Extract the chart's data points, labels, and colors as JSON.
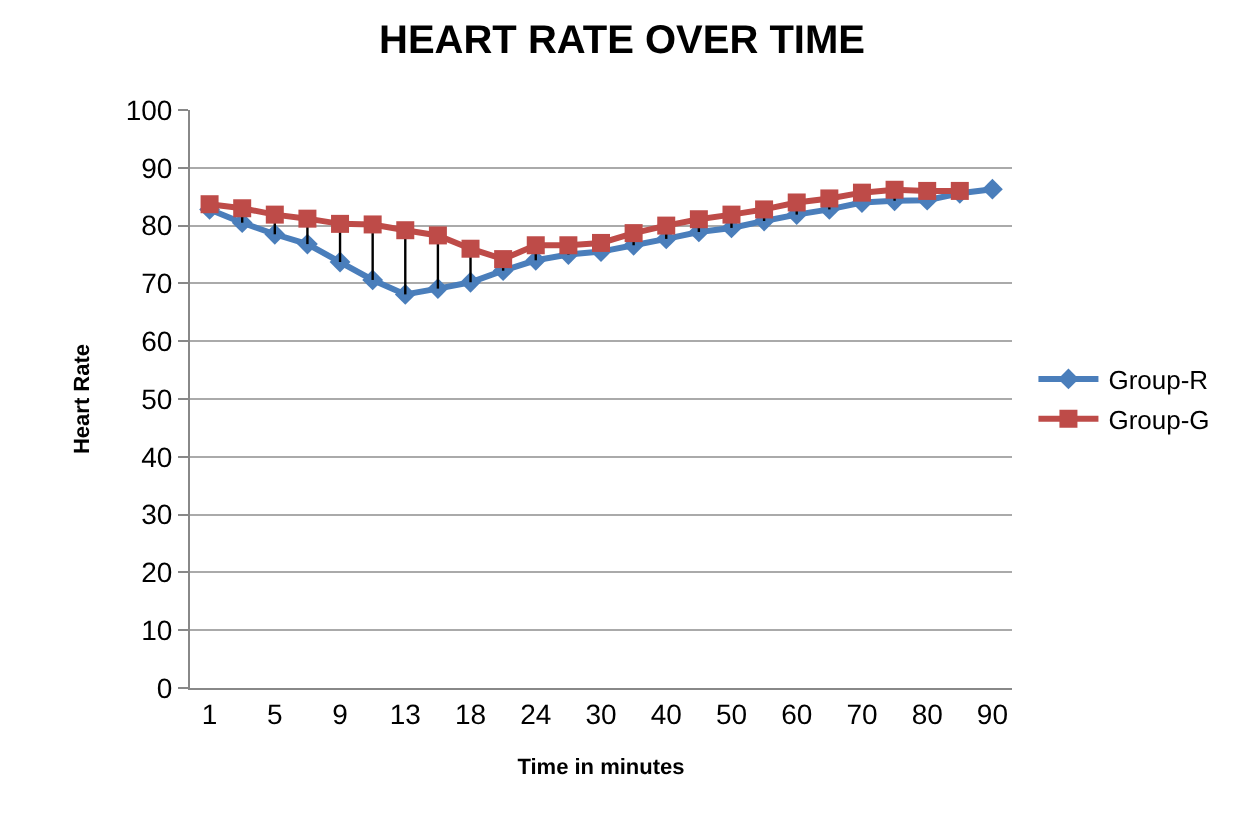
{
  "chart_data": {
    "type": "line",
    "title": "HEART RATE OVER TIME",
    "xlabel": "Time in minutes",
    "ylabel": "Heart Rate",
    "categories": [
      "1",
      null,
      "5",
      null,
      "9",
      null,
      "13",
      null,
      "18",
      null,
      "24",
      null,
      "30",
      null,
      "40",
      null,
      "50",
      null,
      "60",
      null,
      "70",
      null,
      "80",
      null,
      "90"
    ],
    "series": [
      {
        "name": "Group-R",
        "color": "#4a7ebb",
        "marker": "diamond",
        "values": [
          82.8,
          80.5,
          78.5,
          76.8,
          73.7,
          70.6,
          68.1,
          69.1,
          70.2,
          72.2,
          74,
          75,
          75.5,
          76.6,
          77.7,
          78.9,
          79.6,
          80.8,
          81.9,
          82.8,
          84,
          84.3,
          84.4,
          85.6,
          86.3
        ]
      },
      {
        "name": "Group-G",
        "color": "#be4b48",
        "marker": "square",
        "values": [
          83.7,
          83,
          81.9,
          81.2,
          80.3,
          80.2,
          79.2,
          78.3,
          76,
          74.2,
          76.6,
          76.6,
          77,
          78.7,
          80,
          81.1,
          81.9,
          82.8,
          84,
          84.7,
          85.7,
          86.2,
          86,
          86,
          null
        ],
        "errors": [
          null,
          [
            80.5,
            83
          ],
          [
            78.5,
            81.9
          ],
          [
            76.8,
            81.2
          ],
          [
            73.7,
            80.3
          ],
          [
            70.6,
            80.2
          ],
          [
            68.1,
            79.2
          ],
          [
            69.1,
            78.3
          ],
          [
            70.2,
            76
          ],
          [
            72.2,
            74.2
          ],
          [
            74,
            76.6
          ],
          [
            75,
            76.6
          ],
          null,
          [
            76.6,
            78.7
          ],
          [
            77.7,
            80
          ],
          [
            78.9,
            81.1
          ],
          [
            79.6,
            81.9
          ],
          [
            80.8,
            82.8
          ],
          [
            81.9,
            84
          ],
          [
            82.8,
            84.7
          ],
          null,
          [
            84.3,
            86.2
          ],
          null,
          null,
          null
        ]
      }
    ],
    "ylim": [
      0,
      100
    ],
    "yticks": [
      0,
      10,
      20,
      30,
      40,
      50,
      60,
      70,
      80,
      90,
      100
    ],
    "grid": "y",
    "legend": "right"
  }
}
